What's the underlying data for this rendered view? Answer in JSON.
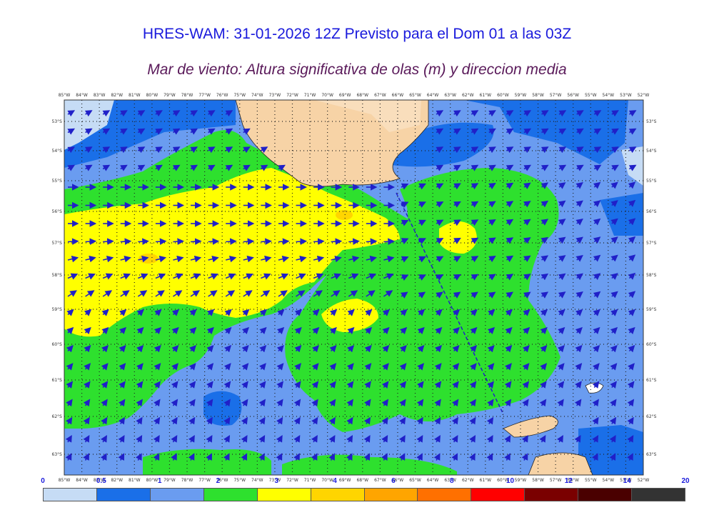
{
  "header": {
    "title": "HRES-WAM: 31-01-2026 12Z Previsto para el Dom 01 a las 03Z",
    "subtitle": "Mar de viento: Altura significativa de olas (m) y direccion media"
  },
  "map": {
    "lon_labels": [
      "85°W",
      "84°W",
      "83°W",
      "82°W",
      "81°W",
      "80°W",
      "79°W",
      "78°W",
      "77°W",
      "76°W",
      "75°W",
      "74°W",
      "73°W",
      "72°W",
      "71°W",
      "70°W",
      "69°W",
      "68°W",
      "67°W",
      "66°W",
      "65°W",
      "64°W",
      "63°W",
      "62°W",
      "61°W",
      "60°W",
      "59°W",
      "58°W",
      "57°W",
      "56°W",
      "55°W",
      "54°W",
      "53°W",
      "52°W"
    ],
    "lat_labels": [
      "53°S",
      "54°S",
      "55°S",
      "56°S",
      "57°S",
      "58°S",
      "59°S",
      "60°S",
      "61°S",
      "62°S",
      "63°S"
    ],
    "colors": {
      "land": "#f7d3a6",
      "arrow": "#2020c8",
      "grid": "#222222"
    }
  },
  "legend": {
    "ticks": [
      "0",
      "0.5",
      "1",
      "2",
      "3",
      "4",
      "6",
      "8",
      "10",
      "12",
      "14",
      "20"
    ],
    "colors": [
      "#c6dcf5",
      "#1a6fe8",
      "#6a9cf0",
      "#2ee02e",
      "#ffff00",
      "#ffd500",
      "#ffa500",
      "#ff7000",
      "#ff0000",
      "#7a0000",
      "#4a0000",
      "#333333"
    ]
  }
}
